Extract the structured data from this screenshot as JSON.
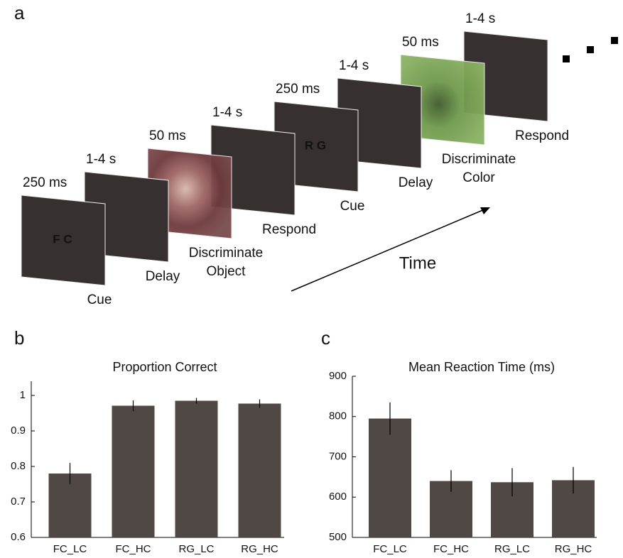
{
  "panel_a": {
    "label": "a",
    "frames": [
      {
        "duration": "250 ms",
        "label": "Cue",
        "cue": "F C"
      },
      {
        "duration": "1-4 s",
        "label": "Delay"
      },
      {
        "duration": "50 ms",
        "label": [
          "Discriminate",
          "Object"
        ]
      },
      {
        "duration": "1-4 s",
        "label": "Respond"
      },
      {
        "duration": "250 ms",
        "label": "Cue",
        "cue": "R G"
      },
      {
        "duration": "1-4 s",
        "label": "Delay"
      },
      {
        "duration": "50 ms",
        "label": [
          "Discriminate",
          "Color"
        ]
      },
      {
        "duration": "1-4 s",
        "label": "Respond"
      }
    ],
    "time_label": "Time"
  },
  "chart_data": [
    {
      "type": "bar",
      "panel": "b",
      "title": "Proportion Correct",
      "categories": [
        "FC_LC",
        "FC_HC",
        "RG_LC",
        "RG_HC"
      ],
      "values": [
        0.78,
        0.971,
        0.985,
        0.977
      ],
      "errors": [
        0.03,
        0.015,
        0.008,
        0.012
      ],
      "color": "#504845",
      "ylim": [
        0.6,
        1.04
      ],
      "yticks": [
        0.6,
        0.7,
        0.8,
        0.9,
        1
      ]
    },
    {
      "type": "bar",
      "panel": "c",
      "title": "Mean Reaction Time (ms)",
      "categories": [
        "FC_LC",
        "FC_HC",
        "RG_LC",
        "RG_HC"
      ],
      "values": [
        795,
        640,
        637,
        642
      ],
      "errors": [
        40,
        27,
        35,
        33
      ],
      "color": "#504845",
      "ylim": [
        500,
        900
      ],
      "yticks": [
        500,
        600,
        700,
        800,
        900
      ]
    }
  ]
}
